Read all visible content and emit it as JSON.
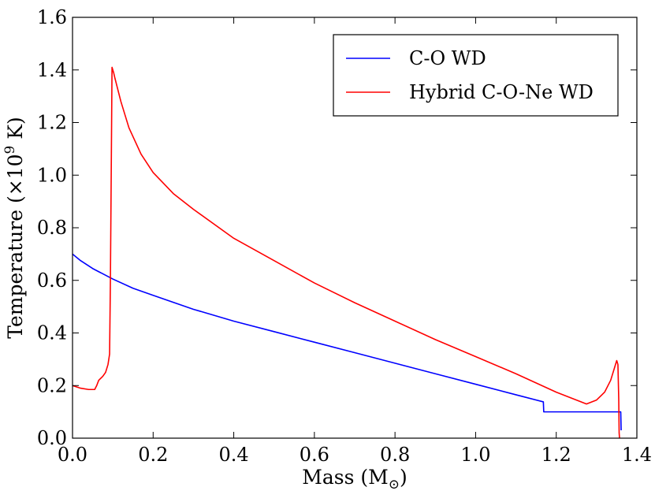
{
  "chart_data": {
    "type": "line",
    "title": "",
    "xlabel": "Mass (M",
    "xlabel_sub": "⊙",
    "xlabel_close": ")",
    "ylabel": "Temperature (×10",
    "ylabel_sup": "9",
    "ylabel_close": " K)",
    "xlim": [
      0.0,
      1.4
    ],
    "ylim": [
      0.0,
      1.6
    ],
    "x_ticks": [
      0.0,
      0.2,
      0.4,
      0.6,
      0.8,
      1.0,
      1.2,
      1.4
    ],
    "x_tick_labels": [
      "0.0",
      "0.2",
      "0.4",
      "0.6",
      "0.8",
      "1.0",
      "1.2",
      "1.4"
    ],
    "y_ticks": [
      0.0,
      0.2,
      0.4,
      0.6,
      0.8,
      1.0,
      1.2,
      1.4,
      1.6
    ],
    "y_tick_labels": [
      "0.0",
      "0.2",
      "0.4",
      "0.6",
      "0.8",
      "1.0",
      "1.2",
      "1.4",
      "1.6"
    ],
    "grid": false,
    "legend_position": "top-right",
    "series": [
      {
        "name": "C-O WD",
        "color": "#0000ff",
        "x": [
          0.0,
          0.02,
          0.05,
          0.1,
          0.15,
          0.2,
          0.3,
          0.4,
          0.5,
          0.6,
          0.7,
          0.8,
          0.9,
          1.0,
          1.1,
          1.168,
          1.169,
          1.2,
          1.3,
          1.36,
          1.361
        ],
        "y": [
          0.7,
          0.675,
          0.645,
          0.605,
          0.57,
          0.543,
          0.49,
          0.445,
          0.405,
          0.365,
          0.325,
          0.285,
          0.245,
          0.205,
          0.165,
          0.138,
          0.1,
          0.1,
          0.1,
          0.1,
          0.03
        ]
      },
      {
        "name": "Hybrid C-O-Ne WD",
        "color": "#ff0000",
        "x": [
          0.0,
          0.02,
          0.04,
          0.055,
          0.06,
          0.065,
          0.075,
          0.082,
          0.088,
          0.092,
          0.094,
          0.096,
          0.098,
          0.1,
          0.102,
          0.105,
          0.11,
          0.12,
          0.14,
          0.17,
          0.2,
          0.25,
          0.3,
          0.4,
          0.5,
          0.6,
          0.7,
          0.8,
          0.9,
          1.0,
          1.1,
          1.2,
          1.25,
          1.275,
          1.3,
          1.32,
          1.335,
          1.345,
          1.35,
          1.353,
          1.355,
          1.356,
          1.357
        ],
        "y": [
          0.2,
          0.19,
          0.185,
          0.185,
          0.2,
          0.22,
          0.235,
          0.25,
          0.28,
          0.32,
          0.6,
          1.0,
          1.41,
          1.4,
          1.39,
          1.37,
          1.34,
          1.28,
          1.18,
          1.08,
          1.01,
          0.93,
          0.87,
          0.76,
          0.675,
          0.59,
          0.515,
          0.445,
          0.375,
          0.31,
          0.245,
          0.175,
          0.145,
          0.13,
          0.145,
          0.175,
          0.22,
          0.27,
          0.295,
          0.28,
          0.15,
          0.02,
          0.0
        ]
      }
    ]
  }
}
